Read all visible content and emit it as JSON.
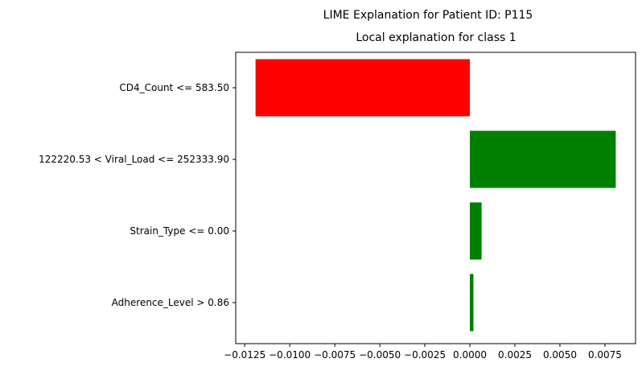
{
  "chart_data": {
    "type": "bar",
    "orientation": "horizontal",
    "suptitle": "LIME Explanation for Patient ID: P115",
    "title": "Local explanation for class 1",
    "xlabel": "",
    "ylabel": "",
    "categories": [
      "CD4_Count <= 583.50",
      "122220.53 < Viral_Load <= 252333.90",
      "Strain_Type <= 0.00",
      "Adherence_Level > 0.86"
    ],
    "values": [
      -0.0119,
      0.0081,
      0.00065,
      0.0002
    ],
    "xlim": [
      -0.013,
      0.0092
    ],
    "xticks": [
      -0.0125,
      -0.01,
      -0.0075,
      -0.005,
      -0.0025,
      0.0,
      0.0025,
      0.005,
      0.0075
    ],
    "xtick_labels": [
      "−0.0125",
      "−0.0100",
      "−0.0075",
      "−0.0050",
      "−0.0025",
      "0.0000",
      "0.0025",
      "0.0050",
      "0.0075"
    ],
    "grid": false,
    "colors": {
      "positive": "#008000",
      "negative": "#ff0000"
    }
  }
}
